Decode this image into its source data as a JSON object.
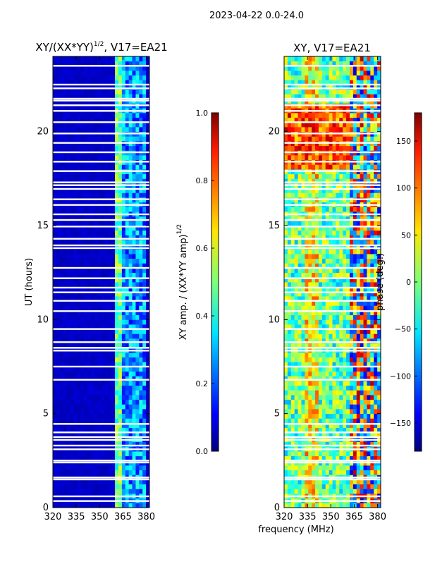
{
  "suptitle": "2023-04-22 0.0-24.0",
  "xlabel": "frequency (MHz)",
  "chart_data": [
    {
      "type": "heatmap",
      "title_main": "XY/(XX*YY)",
      "title_exp": "1/2",
      "title_tail": ", V17=EA21",
      "ylabel": "UT (hours)",
      "xlim": [
        320,
        382
      ],
      "ylim": [
        0,
        24
      ],
      "xticks": [
        320,
        335,
        350,
        365,
        380
      ],
      "yticks": [
        0,
        5,
        10,
        15,
        20
      ],
      "colorbar": {
        "label_main": "XY amp. / (XX*YY amp)",
        "label_exp": "1/2",
        "range": [
          0.0,
          1.0
        ],
        "ticks": [
          "0.0",
          "0.2",
          "0.4",
          "0.6",
          "0.8",
          "1.0"
        ],
        "colormap": "jet"
      }
    },
    {
      "type": "heatmap",
      "title": "XY, V17=EA21",
      "xlim": [
        320,
        382
      ],
      "ylim": [
        0,
        24
      ],
      "xticks": [
        320,
        335,
        350,
        365,
        380
      ],
      "yticks": [
        0,
        5,
        10,
        15,
        20
      ],
      "colorbar": {
        "label": "phase (deg.)",
        "range": [
          -180,
          180
        ],
        "ticks": [
          "150",
          "100",
          "50",
          "0",
          "−50",
          "−100",
          "−150"
        ],
        "tick_values": [
          150,
          100,
          50,
          0,
          -50,
          -100,
          -150
        ],
        "colormap": "jet"
      }
    }
  ]
}
